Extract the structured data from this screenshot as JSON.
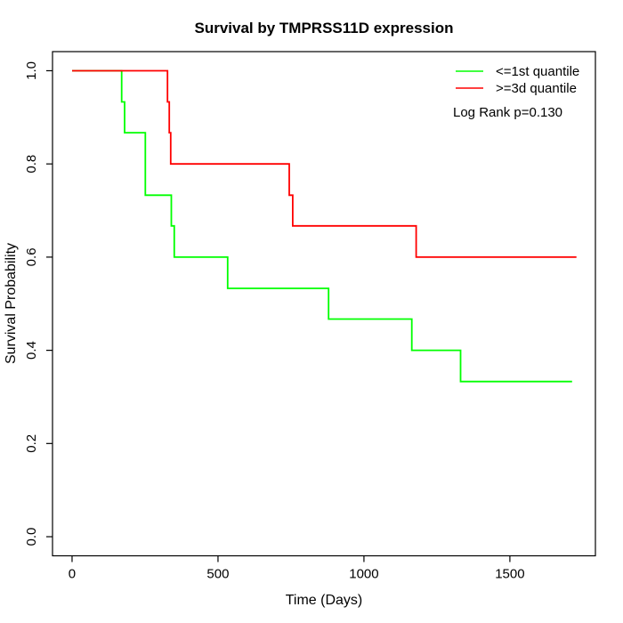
{
  "window": {
    "background": "#FFFFFF",
    "foreground": "#000000"
  },
  "chart_data": {
    "type": "line",
    "subtype": "kaplan-meier-step-survival",
    "title": "Survival by TMPRSS11D expression",
    "xlabel": "Time (Days)",
    "ylabel": "Survival Probability",
    "xlim": [
      -67,
      1793
    ],
    "ylim": [
      -0.041,
      1.041
    ],
    "x_ticks": [
      0,
      500,
      1000,
      1500
    ],
    "x_tick_labels": [
      "0",
      "500",
      "1000",
      "1500"
    ],
    "y_ticks": [
      0.0,
      0.2,
      0.4,
      0.6,
      0.8,
      1.0
    ],
    "y_tick_labels": [
      "0.0",
      "0.2",
      "0.4",
      "0.6",
      "0.8",
      "1.0"
    ],
    "grid": false,
    "box": true,
    "legend_position": "top-right",
    "annotation": "Log Rank p=0.130",
    "series": [
      {
        "name": "<=1st quantile",
        "color": "#00FF00",
        "start": [
          0,
          1.0
        ],
        "steps": [
          [
            170,
            0.933
          ],
          [
            180,
            0.867
          ],
          [
            251,
            0.733
          ],
          [
            340,
            0.667
          ],
          [
            350,
            0.6
          ],
          [
            533,
            0.533
          ],
          [
            879,
            0.467
          ],
          [
            1164,
            0.4
          ],
          [
            1331,
            0.333
          ]
        ],
        "end_time": 1713
      },
      {
        "name": ">=3d quantile",
        "color": "#FF0000",
        "start": [
          0,
          1.0
        ],
        "steps": [
          [
            327,
            0.933
          ],
          [
            333,
            0.867
          ],
          [
            338,
            0.8
          ],
          [
            744,
            0.733
          ],
          [
            756,
            0.667
          ],
          [
            1179,
            0.6
          ]
        ],
        "end_time": 1728
      }
    ]
  }
}
